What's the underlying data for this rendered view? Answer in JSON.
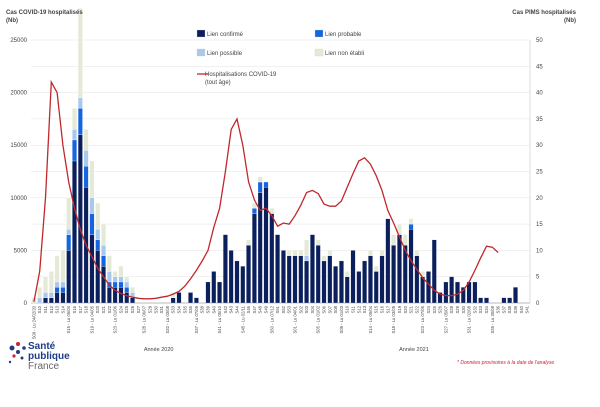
{
  "chart_data": {
    "type": "bar",
    "stacked": true,
    "title_left": "Cas COVID-19 hospitalisés",
    "unit_left": "(Nb)",
    "title_right": "Cas PIMS hospitalisés",
    "unit_right": "(Nb)",
    "ylim_left": [
      0,
      25000
    ],
    "yticks_left": [
      "0",
      "5000",
      "10000",
      "15000",
      "20000",
      "25000"
    ],
    "ylim_right": [
      0,
      50
    ],
    "yticks_right": [
      "0",
      "5",
      "10",
      "15",
      "20",
      "25",
      "30",
      "35",
      "40",
      "45",
      "50"
    ],
    "year_labels": [
      "Année 2020",
      "Année 2021"
    ],
    "n_weeks": 86,
    "categories": [
      "S09 - Lu 24/02/20",
      "S10",
      "S11",
      "S12",
      "S13",
      "S14",
      "S15 - Lu 06/04",
      "S16",
      "S17",
      "S18",
      "S19 - Lu 04/05",
      "S20",
      "S21",
      "S22",
      "S23 - Lu 01/06",
      "S24",
      "S25",
      "S26",
      "S27",
      "S28 - Lu 06/07",
      "S29",
      "S30",
      "S31",
      "S32 - Lu 03/08",
      "S33",
      "S34",
      "S35",
      "S36",
      "S37 - Lu 07/09",
      "S38",
      "S39",
      "S40",
      "S41 - Lu 05/10",
      "S42",
      "S43",
      "S44",
      "S45 - Lu 02/11",
      "S46",
      "S47",
      "S48",
      "S49",
      "S50 - Lu 07/12",
      "S51",
      "S52",
      "S53",
      "S01 - Lu 04/01",
      "S02",
      "S03",
      "S04",
      "S05 - Lu 01/02",
      "S06",
      "S07",
      "S08",
      "S09 - Lu 01/03",
      "S10",
      "S11",
      "S12",
      "S13",
      "S14 - Lu 05/04",
      "S15",
      "S16",
      "S17",
      "S18 - Lu 03/05",
      "S19",
      "S20",
      "S21",
      "S22",
      "S23 - Lu 07/06",
      "S24",
      "S25",
      "S26",
      "S27 - Lu 05/07",
      "S28",
      "S29",
      "S30",
      "S31 - Lu 02/08",
      "S32",
      "S33",
      "S34",
      "S35 - Lu 30/08",
      "S36",
      "S37",
      "S38",
      "S39",
      "S40",
      "S41"
    ],
    "category_labels_shown": [
      {
        "i": 0,
        "text": "S09 - Lu 24/02/20"
      },
      {
        "i": 1,
        "text": "S10"
      },
      {
        "i": 2,
        "text": "S11"
      },
      {
        "i": 3,
        "text": "S12"
      },
      {
        "i": 4,
        "text": "S13"
      },
      {
        "i": 5,
        "text": "S14"
      },
      {
        "i": 6,
        "text": "S15 - Lu 06/04"
      },
      {
        "i": 7,
        "text": "S16"
      },
      {
        "i": 8,
        "text": "S17"
      },
      {
        "i": 9,
        "text": "S18"
      },
      {
        "i": 10,
        "text": "S19 - Lu 04/05"
      },
      {
        "i": 11,
        "text": "S20"
      },
      {
        "i": 12,
        "text": "S21"
      },
      {
        "i": 13,
        "text": "S22"
      },
      {
        "i": 14,
        "text": "S23 - Lu 01/06"
      },
      {
        "i": 15,
        "text": "S24"
      },
      {
        "i": 16,
        "text": "S25"
      },
      {
        "i": 17,
        "text": "S26"
      },
      {
        "i": 18,
        "text": "S27"
      },
      {
        "i": 19,
        "text": "S28 - Lu 06/07"
      },
      {
        "i": 20,
        "text": "S29"
      },
      {
        "i": 21,
        "text": "S30"
      },
      {
        "i": 22,
        "text": "S31"
      },
      {
        "i": 23,
        "text": "S32 - Lu 03/08"
      },
      {
        "i": 24,
        "text": "S33"
      },
      {
        "i": 25,
        "text": "S34"
      },
      {
        "i": 26,
        "text": "S35"
      },
      {
        "i": 27,
        "text": "S36"
      },
      {
        "i": 28,
        "text": "S37 - Lu 07/09"
      },
      {
        "i": 29,
        "text": "S38"
      },
      {
        "i": 30,
        "text": "S39"
      },
      {
        "i": 31,
        "text": "S40"
      },
      {
        "i": 32,
        "text": "S41 - Lu 05/10"
      },
      {
        "i": 33,
        "text": "S42"
      },
      {
        "i": 34,
        "text": "S43"
      },
      {
        "i": 35,
        "text": "S44"
      },
      {
        "i": 36,
        "text": "S45 - Lu 02/11"
      },
      {
        "i": 37,
        "text": "S46"
      },
      {
        "i": 38,
        "text": "S47"
      },
      {
        "i": 39,
        "text": "S48"
      },
      {
        "i": 40,
        "text": "S49"
      },
      {
        "i": 41,
        "text": "S50 - Lu 07/12"
      },
      {
        "i": 42,
        "text": "S51"
      },
      {
        "i": 43,
        "text": "S52"
      },
      {
        "i": 44,
        "text": "S53"
      },
      {
        "i": 45,
        "text": "S01 - Lu 04/01"
      },
      {
        "i": 46,
        "text": "S02"
      },
      {
        "i": 47,
        "text": "S03"
      },
      {
        "i": 48,
        "text": "S04"
      },
      {
        "i": 49,
        "text": "S05 - Lu 01/02"
      },
      {
        "i": 50,
        "text": "S06"
      },
      {
        "i": 51,
        "text": "S07"
      },
      {
        "i": 52,
        "text": "S08"
      },
      {
        "i": 53,
        "text": "S09 - Lu 01/03"
      },
      {
        "i": 54,
        "text": "S10"
      },
      {
        "i": 55,
        "text": "S11"
      },
      {
        "i": 56,
        "text": "S12"
      },
      {
        "i": 57,
        "text": "S13"
      },
      {
        "i": 58,
        "text": "S14 - Lu 05/04"
      },
      {
        "i": 59,
        "text": "S15"
      },
      {
        "i": 60,
        "text": "S16"
      },
      {
        "i": 61,
        "text": "S17"
      },
      {
        "i": 62,
        "text": "S18 - Lu 03/05"
      },
      {
        "i": 63,
        "text": "S19"
      },
      {
        "i": 64,
        "text": "S20"
      },
      {
        "i": 65,
        "text": "S21"
      },
      {
        "i": 66,
        "text": "S22"
      },
      {
        "i": 67,
        "text": "S23 - Lu 07/06"
      },
      {
        "i": 68,
        "text": "S24"
      },
      {
        "i": 69,
        "text": "S25"
      },
      {
        "i": 70,
        "text": "S26"
      },
      {
        "i": 71,
        "text": "S27 - Lu 05/07"
      },
      {
        "i": 72,
        "text": "S28"
      },
      {
        "i": 73,
        "text": "S29"
      },
      {
        "i": 74,
        "text": "S30"
      },
      {
        "i": 75,
        "text": "S31 - Lu 02/08"
      },
      {
        "i": 76,
        "text": "S32"
      },
      {
        "i": 77,
        "text": "S33"
      },
      {
        "i": 78,
        "text": "S34"
      },
      {
        "i": 79,
        "text": "S35 - Lu 30/08"
      },
      {
        "i": 80,
        "text": "S36"
      },
      {
        "i": 81,
        "text": "S37"
      },
      {
        "i": 82,
        "text": "S38"
      },
      {
        "i": 83,
        "text": "S39"
      },
      {
        "i": 84,
        "text": "S40"
      },
      {
        "i": 85,
        "text": "S41"
      }
    ],
    "series": [
      {
        "name": "Lien confirmé",
        "color": "#0b1f5c",
        "axis": "right",
        "values": [
          0,
          0,
          1,
          1,
          2,
          2,
          10,
          27,
          32,
          22,
          13,
          10,
          7,
          3,
          3,
          3,
          2,
          1,
          0,
          0,
          0,
          0,
          0,
          0,
          1,
          2,
          0,
          2,
          1,
          0,
          4,
          6,
          4,
          13,
          10,
          8,
          7,
          11,
          17,
          21,
          22,
          17,
          13,
          10,
          9,
          9,
          9,
          8,
          13,
          11,
          8,
          9,
          7,
          8,
          5,
          10,
          6,
          8,
          9,
          6,
          9,
          16,
          11,
          13,
          11,
          14,
          9,
          5,
          6,
          12,
          2,
          4,
          5,
          4,
          3,
          4,
          4,
          1,
          1,
          0,
          0,
          1,
          1,
          3,
          0,
          0
        ]
      },
      {
        "name": "Lien probable",
        "color": "#1565e0",
        "axis": "right",
        "values": [
          0,
          0,
          0,
          0,
          1,
          1,
          3,
          4,
          5,
          4,
          4,
          2,
          2,
          1,
          1,
          1,
          1,
          0,
          0,
          0,
          0,
          0,
          0,
          0,
          0,
          0,
          0,
          0,
          0,
          0,
          0,
          0,
          0,
          0,
          0,
          0,
          0,
          0,
          1,
          2,
          1,
          0,
          0,
          0,
          0,
          0,
          0,
          0,
          0,
          0,
          0,
          0,
          0,
          0,
          0,
          0,
          0,
          0,
          0,
          0,
          0,
          0,
          0,
          0,
          0,
          1,
          0,
          0,
          0,
          0,
          0,
          0,
          0,
          0,
          0,
          0,
          0,
          0,
          0,
          0,
          0,
          0,
          0,
          0,
          0,
          0
        ]
      },
      {
        "name": "Lien possible",
        "color": "#a9c8ec",
        "axis": "right",
        "values": [
          0,
          1,
          1,
          1,
          1,
          1,
          1,
          2,
          2,
          3,
          3,
          2,
          2,
          2,
          1,
          1,
          1,
          1,
          0,
          0,
          0,
          0,
          0,
          0,
          0,
          0,
          0,
          0,
          0,
          0,
          0,
          0,
          0,
          0,
          0,
          0,
          0,
          0,
          0,
          0,
          0,
          0,
          0,
          0,
          0,
          0,
          0,
          1,
          0,
          0,
          0,
          0,
          0,
          0,
          0,
          0,
          0,
          0,
          0,
          0,
          0,
          0,
          0,
          0,
          0,
          0,
          0,
          0,
          0,
          0,
          0,
          0,
          0,
          0,
          0,
          0,
          0,
          0,
          0,
          0,
          0,
          0,
          0,
          0,
          0,
          0
        ]
      },
      {
        "name": "Lien non établi",
        "color": "#e4ead6",
        "axis": "right",
        "values": [
          1,
          2,
          3,
          4,
          5,
          6,
          6,
          4,
          17,
          4,
          7,
          5,
          4,
          3,
          1,
          2,
          1,
          1,
          0,
          0,
          0,
          0,
          0,
          0,
          1,
          0,
          0,
          0,
          0,
          0,
          0,
          0,
          0,
          0,
          0,
          0,
          0,
          1,
          1,
          1,
          0,
          1,
          0,
          0,
          1,
          1,
          1,
          3,
          0,
          1,
          1,
          1,
          0,
          0,
          1,
          0,
          0,
          0,
          1,
          1,
          1,
          0,
          2,
          2,
          2,
          1,
          1,
          1,
          0,
          0,
          0,
          0,
          0,
          0,
          0,
          0,
          0,
          0,
          0,
          0,
          0,
          0,
          0,
          0,
          0,
          0
        ]
      },
      {
        "name": "Hospitalisations COVID-19 (tout âge)",
        "color": "#c0282c",
        "type": "line",
        "axis": "left",
        "values": [
          100,
          3000,
          10000,
          21000,
          20000,
          15000,
          11500,
          9000,
          7000,
          5500,
          4400,
          3300,
          2500,
          1700,
          1200,
          900,
          700,
          550,
          450,
          400,
          400,
          450,
          550,
          650,
          850,
          1100,
          1600,
          2300,
          3100,
          4000,
          5000,
          7200,
          9000,
          12500,
          16500,
          17500,
          15000,
          11500,
          9800,
          8800,
          9000,
          8300,
          7300,
          7600,
          7500,
          8300,
          9300,
          10500,
          10700,
          10400,
          9400,
          9200,
          9200,
          9700,
          11000,
          12300,
          13500,
          13800,
          13200,
          12100,
          10700,
          8800,
          7600,
          6300,
          5000,
          4000,
          3200,
          2400,
          1800,
          1200,
          850,
          700,
          700,
          850,
          1200,
          2000,
          3100,
          4300,
          5400,
          5300,
          4800,
          null,
          null,
          null,
          null,
          null
        ]
      }
    ],
    "legend": [
      {
        "label": "Lien confirmé",
        "swatch": "#0b1f5c"
      },
      {
        "label": "Lien probable",
        "swatch": "#1565e0"
      },
      {
        "label": "Lien possible",
        "swatch": "#a9c8ec"
      },
      {
        "label": "Lien non établi",
        "swatch": "#e4ead6"
      },
      {
        "label": "Hospitalisations COVID-19",
        "label2": "(tout âge)",
        "swatch": "#c0282c",
        "line": true
      }
    ],
    "grid": true,
    "legend_position": "top-center"
  },
  "logo": {
    "line1": "Santé",
    "line2": "publique",
    "line3": "France"
  },
  "footnote": "* Données provisoires à la date de l'analyse"
}
